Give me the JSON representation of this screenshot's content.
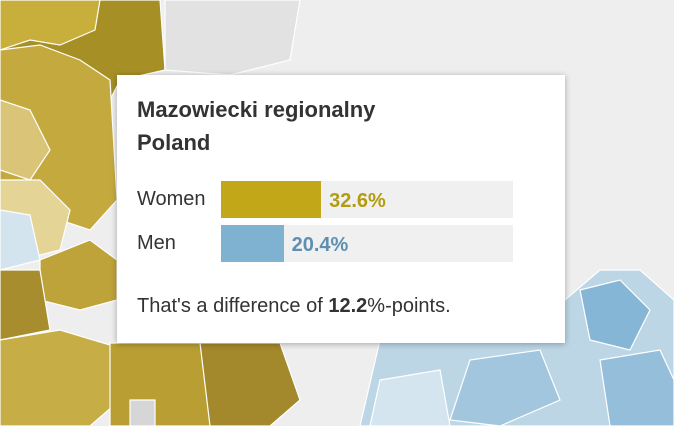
{
  "tooltip": {
    "title": "Mazowiecki regionalny",
    "subtitle": "Poland",
    "bars": [
      {
        "label": "Women",
        "value": 32.6,
        "value_label": "32.6%",
        "color": "#c2a818"
      },
      {
        "label": "Men",
        "value": 20.4,
        "value_label": "20.4%",
        "color": "#7fb1d0"
      }
    ],
    "difference": {
      "prefix": "That's a difference of",
      "value": 12.2,
      "suffix": "%-points."
    }
  }
}
